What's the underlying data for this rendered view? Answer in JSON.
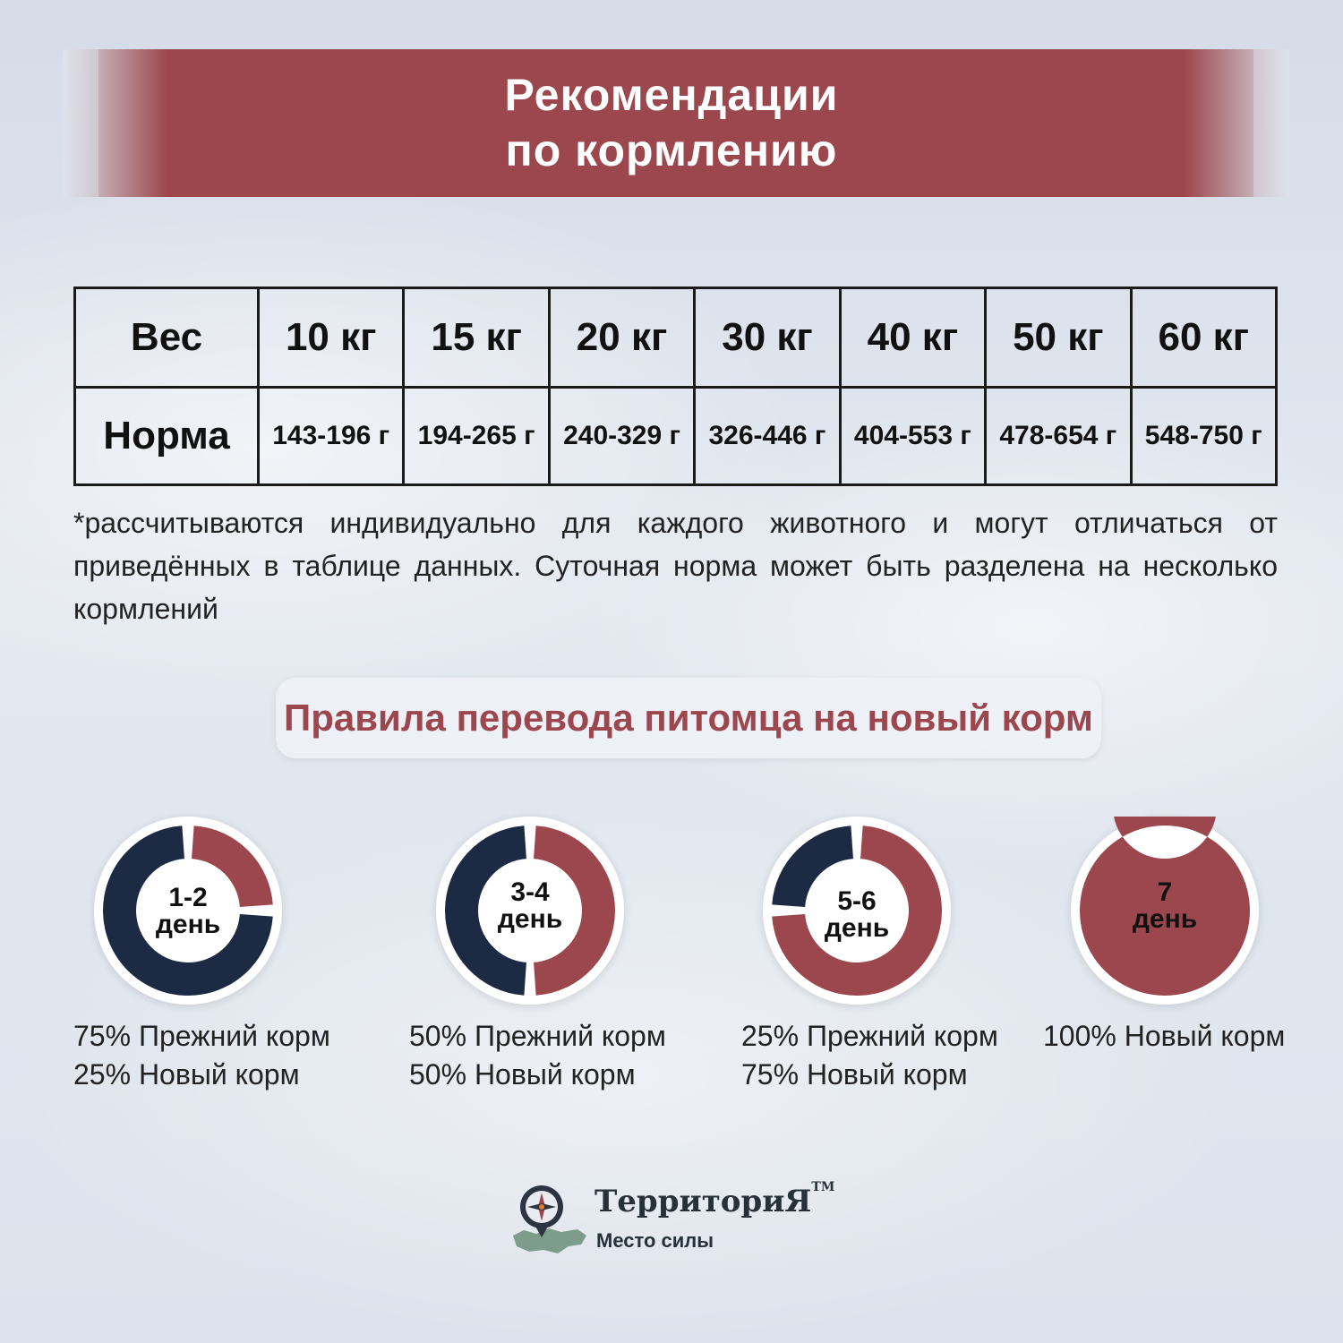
{
  "colors": {
    "accent": "#9b474d",
    "navy": "#1d2a44",
    "background": "#dde3ec"
  },
  "header": {
    "title_line1": "Рекомендации",
    "title_line2": "по кормлению"
  },
  "table": {
    "row_headers": [
      "Вес",
      "Норма"
    ],
    "weights": [
      "10 кг",
      "15 кг",
      "20 кг",
      "30 кг",
      "40 кг",
      "50 кг",
      "60 кг"
    ],
    "norms": [
      "143-196 г",
      "194-265 г",
      "240-329 г",
      "326-446 г",
      "404-553 г",
      "478-654 г",
      "548-750 г"
    ]
  },
  "note": "*рассчитываются индивидуально для каждого животного и могут отличаться от приведённых в таблице данных. Суточная норма может быть разделена на несколько кормлений",
  "section_title": "Правила перевода питомца на новый корм",
  "steps": [
    {
      "days": "1-2",
      "unit": "день",
      "new_food_fraction": 0.25,
      "line1": "75% Прежний корм",
      "line2": "25% Новый корм"
    },
    {
      "days": "3-4",
      "unit": "день",
      "new_food_fraction": 0.5,
      "line1": "50% Прежний корм",
      "line2": "50% Новый корм"
    },
    {
      "days": "5-6",
      "unit": "день",
      "new_food_fraction": 0.75,
      "line1": "25% Прежний корм",
      "line2": "75% Новый корм"
    },
    {
      "days": "7",
      "unit": "день",
      "new_food_fraction": 1.0,
      "line1": "100% Новый корм",
      "line2": ""
    }
  ],
  "logo": {
    "name": "ТерриториЯ",
    "tm": "TM",
    "subtitle": "Место силы"
  }
}
